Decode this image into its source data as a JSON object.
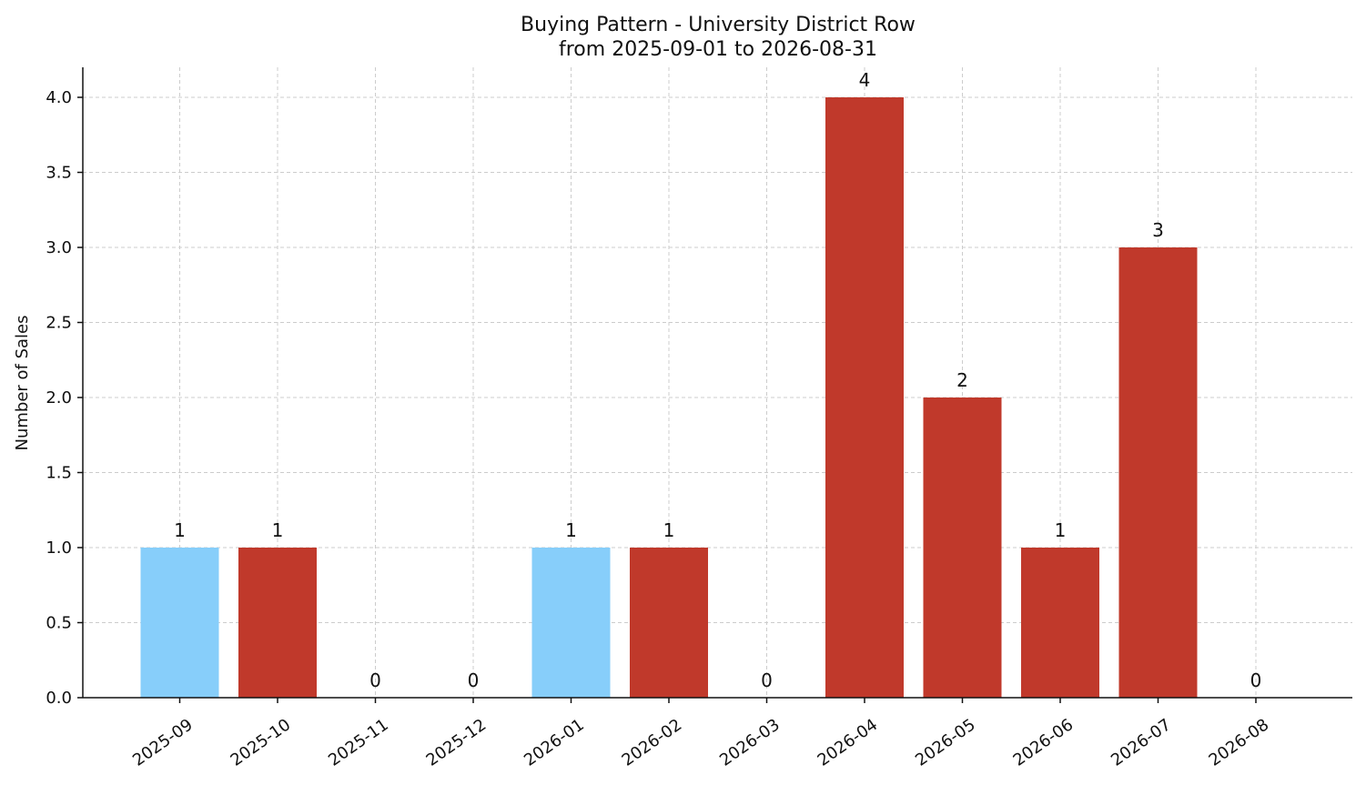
{
  "chart_data": {
    "type": "bar",
    "title": "Buying Pattern - University District Row",
    "subtitle": "from 2025-09-01 to 2026-08-31",
    "xlabel": "",
    "ylabel": "Number of Sales",
    "ylim": [
      0,
      4.2
    ],
    "yticks": [
      "0.0",
      "0.5",
      "1.0",
      "1.5",
      "2.0",
      "2.5",
      "3.0",
      "3.5",
      "4.0"
    ],
    "grid": true,
    "categories": [
      "2025-09",
      "2025-10",
      "2025-11",
      "2025-12",
      "2026-01",
      "2026-02",
      "2026-03",
      "2026-04",
      "2026-05",
      "2026-06",
      "2026-07",
      "2026-08"
    ],
    "values": [
      1,
      1,
      0,
      0,
      1,
      1,
      0,
      4,
      2,
      1,
      3,
      0
    ],
    "colors": [
      "#87cefa",
      "#c0392b",
      "#c0392b",
      "#c0392b",
      "#87cefa",
      "#c0392b",
      "#c0392b",
      "#c0392b",
      "#c0392b",
      "#c0392b",
      "#c0392b",
      "#c0392b"
    ]
  }
}
